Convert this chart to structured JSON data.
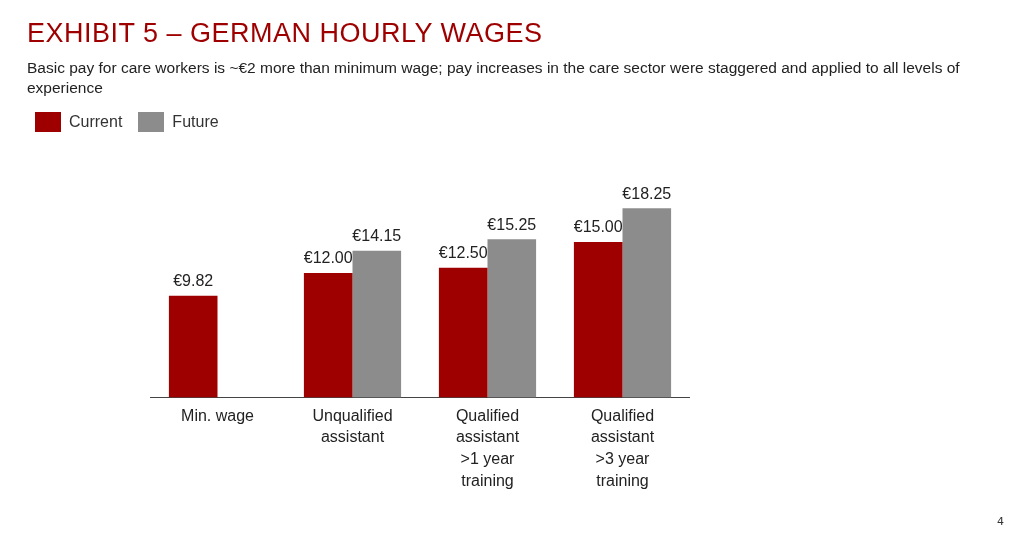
{
  "chart_data": {
    "type": "bar",
    "title": "EXHIBIT 5 – GERMAN HOURLY WAGES",
    "subtitle": "Basic pay for care workers is ~€2 more than minimum wage; pay increases in the care sector were staggered and applied to all levels of experience",
    "categories": [
      "Min. wage",
      "Unqualified assistant",
      "Qualified assistant >1 year training",
      "Qualified assistant >3 year training"
    ],
    "series": [
      {
        "name": "Current",
        "color": "#9e0000",
        "values": [
          9.82,
          12.0,
          12.5,
          15.0
        ],
        "value_labels": [
          "€9.82",
          "€12.00",
          "€12.50",
          "€15.00"
        ]
      },
      {
        "name": "Future",
        "color": "#8c8c8c",
        "values": [
          null,
          14.15,
          15.25,
          18.25
        ],
        "value_labels": [
          null,
          "€14.15",
          "€15.25",
          "€18.25"
        ]
      }
    ],
    "legend": "top left",
    "grid": false,
    "annotations": [
      "4"
    ]
  }
}
